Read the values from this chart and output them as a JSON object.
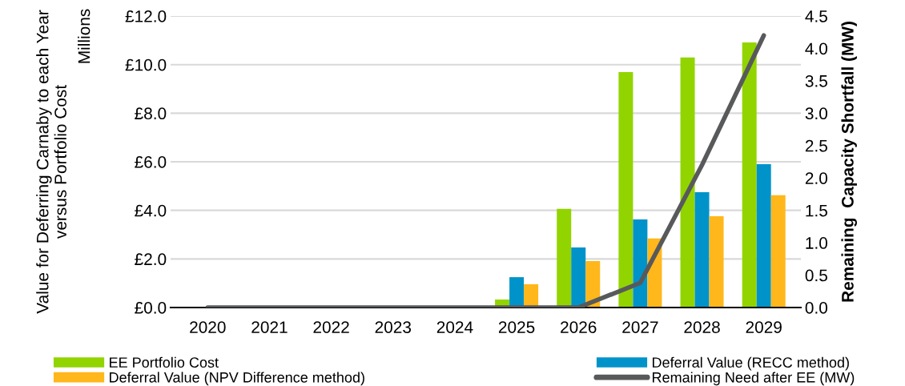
{
  "chart_data": {
    "type": "bar",
    "categories": [
      "2020",
      "2021",
      "2022",
      "2023",
      "2024",
      "2025",
      "2026",
      "2027",
      "2028",
      "2029"
    ],
    "ylabel": "Value for Deferring Carnaby to each Year versus Portfolio Cost",
    "y2label": "Remaining  Capacity Shortfall (MW)",
    "annotations": [
      "Millions"
    ],
    "series": [
      {
        "name": "EE Portfolio Cost",
        "color": "#92d400",
        "values": [
          0,
          0,
          0,
          0,
          0,
          0.33,
          4.06,
          9.69,
          10.29,
          10.91
        ]
      },
      {
        "name": "Deferral Value (RECC method)",
        "color": "#0093c9",
        "values": [
          0,
          0,
          0,
          0,
          0,
          1.25,
          2.47,
          3.63,
          4.75,
          5.9
        ]
      },
      {
        "name": "Deferral Value (NPV Difference method)",
        "color": "#ffb71b",
        "values": [
          0,
          0,
          0,
          0,
          0,
          0.96,
          1.91,
          2.84,
          3.76,
          4.62
        ]
      },
      {
        "name": "Remaining Need after EE (MW)",
        "color": "#58595b",
        "type": "line",
        "axis": "y2",
        "values": [
          0,
          0,
          0,
          0,
          0,
          0,
          0,
          0.38,
          2.2,
          4.2
        ]
      }
    ],
    "ylim": [
      0,
      12
    ],
    "yticks": [
      {
        "value": 0,
        "label": "£0.0"
      },
      {
        "value": 2,
        "label": "£2.0"
      },
      {
        "value": 4,
        "label": "£4.0"
      },
      {
        "value": 6,
        "label": "£6.0"
      },
      {
        "value": 8,
        "label": "£8.0"
      },
      {
        "value": 10,
        "label": "£10.0"
      },
      {
        "value": 12,
        "label": "£12.0"
      }
    ],
    "y2lim": [
      0,
      4.5
    ],
    "y2ticks": [
      {
        "value": 0,
        "label": "0.0"
      },
      {
        "value": 0.5,
        "label": "0.5"
      },
      {
        "value": 1,
        "label": "1.0"
      },
      {
        "value": 1.5,
        "label": "1.5"
      },
      {
        "value": 2,
        "label": "2.0"
      },
      {
        "value": 2.5,
        "label": "2.5"
      },
      {
        "value": 3,
        "label": "3.0"
      },
      {
        "value": 3.5,
        "label": "3.5"
      },
      {
        "value": 4,
        "label": "4.0"
      },
      {
        "value": 4.5,
        "label": "4.5"
      }
    ],
    "grid": "y",
    "legend": "bottom"
  }
}
